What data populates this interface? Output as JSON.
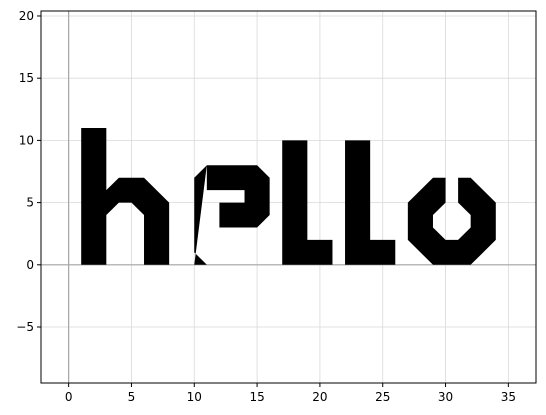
{
  "chart_data": {
    "type": "area",
    "title": "",
    "xlabel": "",
    "ylabel": "",
    "xlim": [
      -2.2,
      37.2
    ],
    "ylim": [
      -9.5,
      20.4
    ],
    "grid": true,
    "reference_lines": {
      "x": 0,
      "y": 0
    },
    "xticks": [
      {
        "value": 0,
        "label": "0"
      },
      {
        "value": 5,
        "label": "5"
      },
      {
        "value": 10,
        "label": "10"
      },
      {
        "value": 15,
        "label": "15"
      },
      {
        "value": 20,
        "label": "20"
      },
      {
        "value": 25,
        "label": "25"
      },
      {
        "value": 30,
        "label": "30"
      },
      {
        "value": 35,
        "label": "35"
      }
    ],
    "yticks": [
      {
        "value": -5,
        "label": "−5"
      },
      {
        "value": 0,
        "label": "0"
      },
      {
        "value": 5,
        "label": "5"
      },
      {
        "value": 10,
        "label": "10"
      },
      {
        "value": 15,
        "label": "15"
      },
      {
        "value": 20,
        "label": "20"
      }
    ],
    "fill_color": "#000000",
    "grid_color": "#d9d9d9",
    "reference_line_color": "#a6a6a6",
    "shapes": [
      {
        "name": "letter-h",
        "points": [
          [
            1,
            0
          ],
          [
            1,
            11
          ],
          [
            3,
            11
          ],
          [
            3,
            4
          ],
          [
            4,
            5
          ],
          [
            5,
            5
          ],
          [
            6,
            4
          ],
          [
            6,
            0
          ],
          [
            8,
            0
          ],
          [
            8,
            5
          ],
          [
            6,
            7
          ],
          [
            4,
            7
          ],
          [
            3,
            6
          ],
          [
            3,
            0
          ]
        ]
      },
      {
        "name": "letter-e",
        "points": [
          [
            10,
            0
          ],
          [
            15,
            0
          ],
          [
            16,
            1
          ],
          [
            16,
            2
          ],
          [
            11,
            2
          ],
          [
            11,
            8
          ],
          [
            15,
            8
          ],
          [
            16,
            7
          ],
          [
            16,
            4
          ],
          [
            15,
            3
          ],
          [
            12,
            3
          ],
          [
            12,
            5
          ],
          [
            14,
            5
          ],
          [
            14,
            6
          ],
          [
            11,
            6
          ],
          [
            11,
            2
          ],
          [
            16,
            2
          ],
          [
            16,
            1
          ],
          [
            15,
            0
          ],
          [
            11,
            0
          ],
          [
            10,
            1
          ],
          [
            10,
            7
          ],
          [
            11,
            8
          ]
        ]
      },
      {
        "name": "letter-l-1",
        "points": [
          [
            17,
            0
          ],
          [
            17,
            10
          ],
          [
            19,
            10
          ],
          [
            19,
            2
          ],
          [
            21,
            2
          ],
          [
            21,
            0
          ]
        ]
      },
      {
        "name": "letter-l-2",
        "points": [
          [
            22,
            0
          ],
          [
            22,
            10
          ],
          [
            24,
            10
          ],
          [
            24,
            2
          ],
          [
            26,
            2
          ],
          [
            26,
            0
          ]
        ]
      },
      {
        "name": "letter-o",
        "points": [
          [
            29,
            0
          ],
          [
            27,
            2
          ],
          [
            27,
            5
          ],
          [
            29,
            7
          ],
          [
            30,
            7
          ],
          [
            30,
            5
          ],
          [
            29,
            4
          ],
          [
            29,
            3
          ],
          [
            30,
            2
          ],
          [
            31,
            2
          ],
          [
            32,
            3
          ],
          [
            32,
            4
          ],
          [
            31,
            5
          ],
          [
            31,
            7
          ],
          [
            32,
            7
          ],
          [
            34,
            5
          ],
          [
            34,
            2
          ],
          [
            32,
            0
          ]
        ]
      }
    ]
  }
}
